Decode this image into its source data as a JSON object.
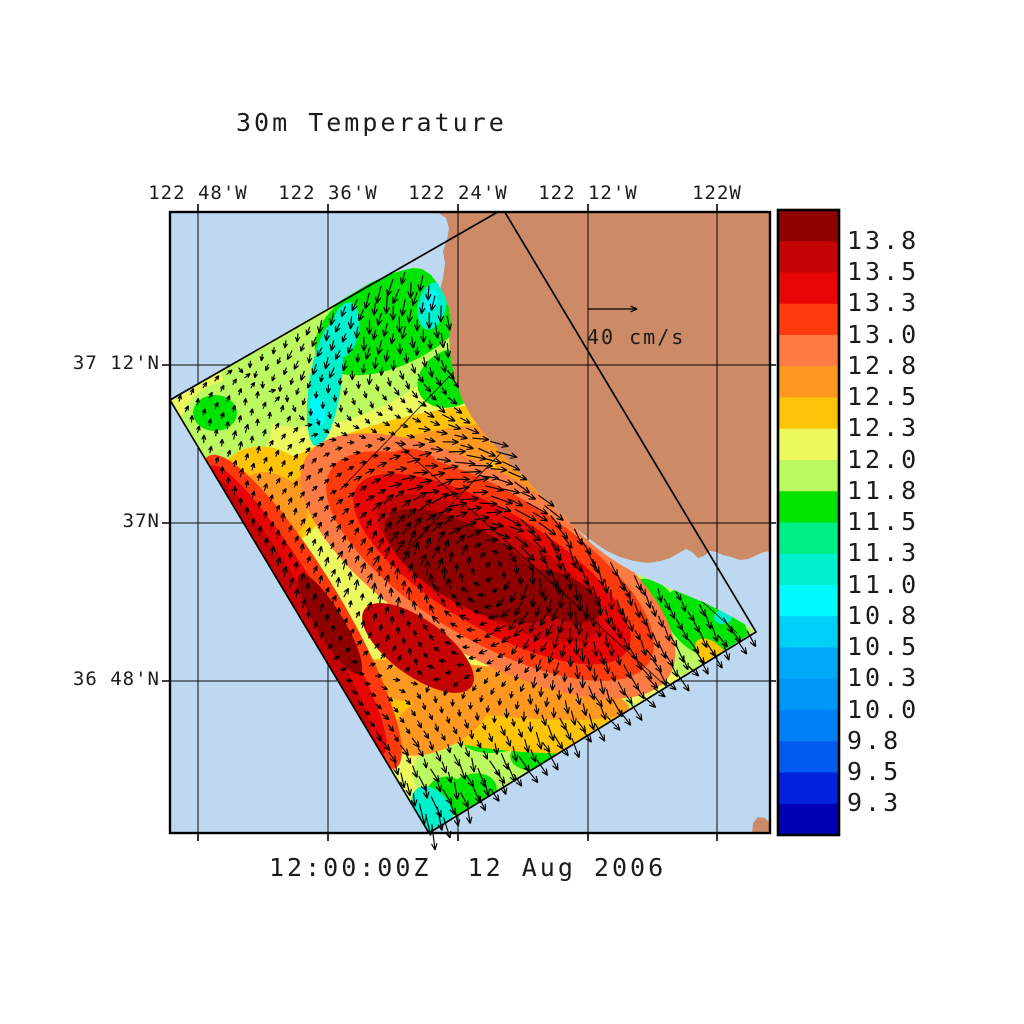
{
  "title": "30m Temperature",
  "map": {
    "date_label": "12:00:00Z  12 Aug 2006",
    "reference_arrow_label": "40 cm/s",
    "lon_labels": [
      "122 48'W",
      "122 36'W",
      "122 24'W",
      "122 12'W",
      "122W"
    ],
    "lat_labels": [
      "37 12'N",
      "37N",
      "36 48'N"
    ]
  },
  "colorbar": {
    "tick_labels": [
      "13.8",
      "13.5",
      "13.3",
      "13.0",
      "12.8",
      "12.5",
      "12.3",
      "12.0",
      "11.8",
      "11.5",
      "11.3",
      "11.0",
      "10.8",
      "10.5",
      "10.3",
      "10.0",
      "9.8",
      "9.5",
      "9.3"
    ],
    "segment_colors": [
      "#8F0000",
      "#C40404",
      "#E80505",
      "#FF3A0D",
      "#FF7B44",
      "#FF9820",
      "#FFC407",
      "#EBF95F",
      "#BCF85F",
      "#00E400",
      "#00EE86",
      "#00F0CE",
      "#00FBFF",
      "#00CFF8",
      "#00A9F7",
      "#0096F8",
      "#0080F4",
      "#005AEF",
      "#0022DC",
      "#0000B5"
    ]
  },
  "colors": {
    "ocean": "#BED8F2",
    "land": "#CC8B66",
    "line": "#000000",
    "background": "#FFFFFF"
  },
  "chart_data": {
    "type": "heatmap",
    "title": "30m Temperature",
    "datetime_label": "12:00:00Z  12 Aug 2006",
    "x_tick_labels": [
      "122 48'W",
      "122 36'W",
      "122 24'W",
      "122 12'W",
      "122W"
    ],
    "y_tick_labels": [
      "37 12'N",
      "37N",
      "36 48'N"
    ],
    "colorbar_levels": [
      13.8,
      13.5,
      13.3,
      13.0,
      12.8,
      12.5,
      12.3,
      12.0,
      11.8,
      11.5,
      11.3,
      11.0,
      10.8,
      10.5,
      10.3,
      10.0,
      9.8,
      9.5,
      9.3
    ],
    "colorbar_colors": [
      "#8F0000",
      "#C40404",
      "#E80505",
      "#FF3A0D",
      "#FF7B44",
      "#FF9820",
      "#FFC407",
      "#EBF95F",
      "#BCF85F",
      "#00E400",
      "#00EE86",
      "#00F0CE",
      "#00FBFF",
      "#00CFF8",
      "#00A9F7",
      "#0096F8",
      "#0080F4",
      "#005AEF",
      "#0022DC",
      "#0000B5"
    ],
    "vector_overlay": {
      "reference_value": 40,
      "units": "cm/s"
    },
    "field_summary": {
      "description": "Rotated coastal model swath off Monterey Bay showing 30m temperature with current vectors",
      "warm_core": {
        "approx_max": 13.8,
        "approx_location": "122 30'W, 36 55'N"
      },
      "warm_band_edge": {
        "approx_value": 13.0,
        "approx_location": "along southwest swath edge"
      },
      "cool_regions": {
        "approx_value": 11.0,
        "approx_location": "northern tip and southeast lobe of swath"
      },
      "eddy": "clockwise (anticyclonic) circulation around warm core with eastward jet on its south side"
    }
  }
}
